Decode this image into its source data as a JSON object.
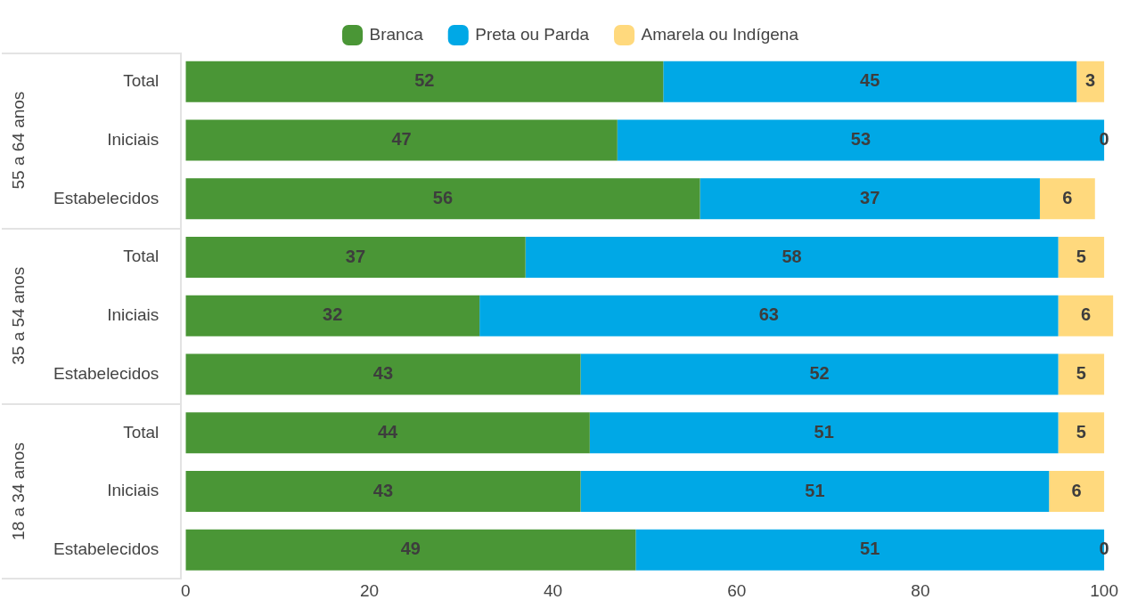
{
  "chart_data": {
    "type": "bar",
    "orientation": "horizontal",
    "stacked": true,
    "data_labels": true,
    "grid": false,
    "legend": "top",
    "categories": [
      "Total",
      "Iniciais",
      "Estabelecidos",
      "Total",
      "Iniciais",
      "Estabelecidos",
      "Total",
      "Iniciais",
      "Estabelecidos"
    ],
    "annotations": [
      "55 a 64 anos",
      "35 a 54 anos",
      "18 a 34 anos"
    ],
    "xlim": [
      0,
      101
    ],
    "xticks": [
      0,
      20,
      40,
      60,
      80,
      100
    ],
    "series": [
      {
        "name": "Branca",
        "color": "#4a9636",
        "values": [
          52,
          47,
          56,
          37,
          32,
          43,
          44,
          43,
          49
        ]
      },
      {
        "name": "Preta ou Parda",
        "color": "#00a8e6",
        "values": [
          45,
          53,
          37,
          58,
          63,
          52,
          51,
          51,
          51
        ]
      },
      {
        "name": "Amarela ou Indígena",
        "color": "#ffd97d",
        "values": [
          3,
          0,
          6,
          5,
          6,
          5,
          5,
          6,
          0
        ]
      }
    ]
  }
}
